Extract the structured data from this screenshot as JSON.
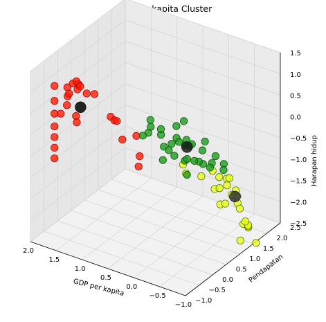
{
  "chart_data": {
    "type": "scatter",
    "projection": "3d",
    "title": "GDP per kapita Cluster",
    "xlabel": "GDP per kapita",
    "ylabel": "Pendapatan",
    "zlabel": "Harapan hidup",
    "xlim": [
      -1.0,
      2.0
    ],
    "ylim": [
      -1.0,
      2.5
    ],
    "zlim": [
      -2.5,
      1.5
    ],
    "x_ticks": [
      "2.0",
      "1.5",
      "1.0",
      "0.5",
      "0.0",
      "−0.5",
      "−1.0"
    ],
    "y_ticks": [
      "−1.0",
      "−0.5",
      "0.0",
      "0.5",
      "1.0",
      "1.5",
      "2.0",
      "2.5"
    ],
    "z_ticks": [
      "1.5",
      "1.0",
      "0.5",
      "0.0",
      "−0.5",
      "−1.0",
      "−1.5",
      "−2.0",
      "−2.5"
    ],
    "grid": true,
    "legend": "none",
    "series": [
      {
        "color": "#ff1a00",
        "edge": "#b00000",
        "points": [
          [
            1.98,
            -0.15,
            0.75
          ],
          [
            1.98,
            -0.15,
            0.4
          ],
          [
            1.98,
            -0.15,
            0.1
          ],
          [
            1.98,
            -0.15,
            -0.2
          ],
          [
            1.98,
            -0.15,
            -0.45
          ],
          [
            1.98,
            -0.15,
            -0.7
          ],
          [
            1.98,
            -0.15,
            -0.95
          ],
          [
            1.86,
            -0.15,
            0.15
          ],
          [
            1.74,
            -0.15,
            0.4
          ],
          [
            1.7,
            -0.2,
            0.65
          ],
          [
            1.62,
            -0.3,
            0.8
          ],
          [
            1.6,
            -0.4,
            1.0
          ],
          [
            1.52,
            -0.35,
            1.1
          ],
          [
            1.43,
            -0.35,
            1.0
          ],
          [
            1.36,
            -0.45,
            1.2
          ],
          [
            1.3,
            -0.5,
            1.2
          ],
          [
            1.4,
            -0.45,
            1.25
          ],
          [
            1.2,
            -0.45,
            1.05
          ],
          [
            1.05,
            -0.45,
            1.1
          ],
          [
            1.8,
            0.3,
            -0.1
          ],
          [
            1.68,
            0.1,
            -0.1
          ],
          [
            0.92,
            -0.1,
            0.45
          ],
          [
            0.85,
            -0.1,
            0.4
          ],
          [
            0.8,
            -0.1,
            0.4
          ],
          [
            0.58,
            0.2,
            0.0
          ],
          [
            0.85,
            0.2,
            -0.2
          ],
          [
            0.7,
            0.55,
            -0.7
          ],
          [
            0.72,
            0.55,
            -0.95
          ]
        ]
      },
      {
        "color": "#1a9a1a",
        "edge": "#0c5a0c",
        "points": [
          [
            0.25,
            0.1,
            0.4
          ],
          [
            0.05,
            0.1,
            0.3
          ],
          [
            -0.1,
            0.2,
            0.1
          ],
          [
            0.0,
            0.0,
            0.5
          ],
          [
            -0.25,
            0.1,
            0.35
          ],
          [
            -0.35,
            0.0,
            0.35
          ],
          [
            -0.45,
            0.2,
            0.2
          ],
          [
            -0.1,
            0.1,
            0.0
          ],
          [
            0.1,
            0.3,
            -0.1
          ],
          [
            -0.05,
            0.4,
            -0.3
          ],
          [
            0.25,
            0.55,
            -0.6
          ],
          [
            -0.2,
            0.5,
            -0.4
          ],
          [
            -0.35,
            0.3,
            -0.2
          ],
          [
            -0.55,
            0.35,
            -0.2
          ],
          [
            -0.6,
            0.0,
            0.4
          ],
          [
            -0.7,
            0.2,
            0.2
          ],
          [
            -0.75,
            0.45,
            -0.2
          ],
          [
            -0.8,
            0.1,
            0.5
          ],
          [
            -0.9,
            0.3,
            0.1
          ],
          [
            -0.95,
            0.5,
            -0.3
          ],
          [
            -0.5,
            0.6,
            -0.4
          ],
          [
            -0.3,
            0.0,
            0.7
          ],
          [
            -0.6,
            -0.2,
            0.6
          ],
          [
            0.15,
            -0.1,
            0.7
          ],
          [
            0.35,
            0.0,
            0.2
          ],
          [
            0.4,
            0.3,
            0.1
          ],
          [
            -0.15,
            0.6,
            -0.1
          ],
          [
            -0.85,
            0.7,
            -0.3
          ],
          [
            -0.7,
            -0.1,
            0.1
          ],
          [
            -0.4,
            0.2,
            -0.5
          ],
          [
            -0.95,
            0.0,
            0.0
          ],
          [
            0.5,
            1.8,
            -0.4
          ]
        ]
      },
      {
        "color": "#e9ff1a",
        "edge": "#5a7a00",
        "points": [
          [
            -0.5,
            1.2,
            -1.0
          ],
          [
            -0.7,
            1.1,
            -0.9
          ],
          [
            -0.8,
            1.0,
            -0.8
          ],
          [
            -0.9,
            0.9,
            -1.1
          ],
          [
            -0.6,
            1.3,
            -1.2
          ],
          [
            -0.85,
            1.2,
            -1.3
          ],
          [
            -0.95,
            1.1,
            -1.5
          ],
          [
            -0.75,
            1.4,
            -1.6
          ],
          [
            -0.95,
            1.3,
            -1.9
          ],
          [
            -0.9,
            1.5,
            -2.1
          ],
          [
            -0.8,
            1.7,
            -2.3
          ],
          [
            -0.95,
            1.7,
            -2.6
          ],
          [
            -0.7,
            1.6,
            -2.6
          ],
          [
            -0.4,
            1.4,
            -1.4
          ],
          [
            -0.2,
            1.6,
            -1.6
          ],
          [
            -0.3,
            1.8,
            -2.0
          ],
          [
            -0.1,
            2.0,
            -2.2
          ],
          [
            0.2,
            1.2,
            -1.0
          ],
          [
            0.3,
            1.5,
            -1.4
          ],
          [
            -0.1,
            1.3,
            -1.2
          ],
          [
            -0.6,
            1.9,
            -2.4
          ],
          [
            -0.45,
            1.05,
            -0.8
          ],
          [
            -0.95,
            0.95,
            -1.0
          ],
          [
            -0.85,
            1.6,
            -2.2
          ]
        ]
      }
    ],
    "centroids": [
      {
        "color": "#000000",
        "point": [
          1.45,
          -0.2,
          0.5
        ]
      },
      {
        "color": "#1a1a1a",
        "point": [
          -0.4,
          0.2,
          0.15
        ]
      },
      {
        "color": "#333333",
        "point": [
          -0.75,
          1.3,
          -1.4
        ]
      }
    ]
  }
}
